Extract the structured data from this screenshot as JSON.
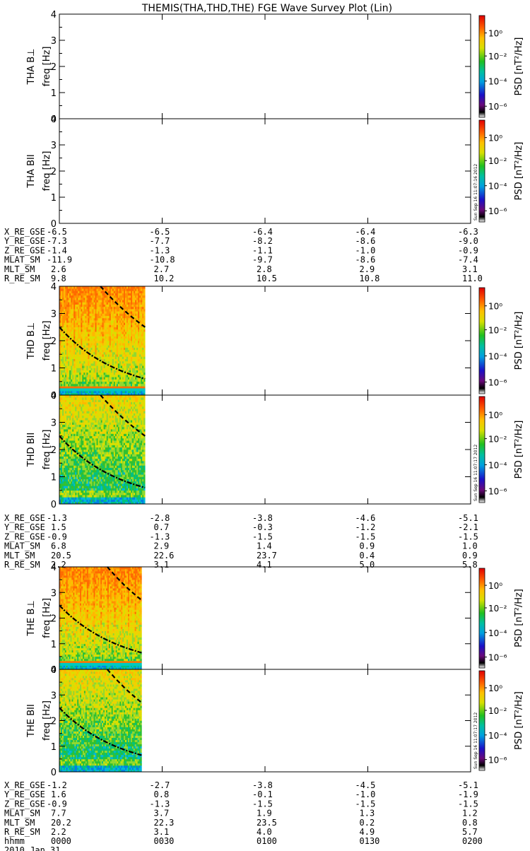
{
  "title": "THEMIS(THA,THD,THE) FGE Wave Survey Plot (Lin)",
  "colorbar": {
    "label": "PSD [nT²/Hz]",
    "ticks": [
      "10⁰",
      "10⁻²",
      "10⁻⁴",
      "10⁻⁶"
    ],
    "stamp": "Sun Sep 16 11:07:17 2012",
    "stamp_top": "Sun Sep 16 11:07:16 2012"
  },
  "freq_ticks": [
    "0",
    "1",
    "2",
    "3",
    "4"
  ],
  "time_ticks": [
    "0000",
    "0030",
    "0100",
    "0130",
    "0200"
  ],
  "date_label": "2010 Jan 31",
  "hhmm_label": "hhmm",
  "chart_data": [
    {
      "type": "heatmap",
      "probe": "THA",
      "panel": "THA B⊥",
      "ylabel": "freq [Hz]",
      "ylim": [
        0,
        4
      ],
      "xlim": [
        "0000",
        "0200"
      ],
      "data_coverage": "none",
      "ephemeris": {
        "labels": [
          "X_RE_GSE",
          "Y_RE_GSE",
          "Z_RE_GSE",
          "MLAT_SM",
          "MLT_SM",
          "R_RE_SM"
        ],
        "values": [
          [
            "-6.5",
            "-6.5",
            "-6.4",
            "-6.4",
            "-6.3"
          ],
          [
            "-7.3",
            "-7.7",
            "-8.2",
            "-8.6",
            "-9.0"
          ],
          [
            "-1.4",
            "-1.3",
            "-1.1",
            "-1.0",
            "-0.9"
          ],
          [
            "-11.9",
            "-10.8",
            "-9.7",
            "-8.6",
            "-7.4"
          ],
          [
            "2.6",
            "2.7",
            "2.8",
            "2.9",
            "3.1"
          ],
          [
            "9.8",
            "10.2",
            "10.5",
            "10.8",
            "11.0"
          ]
        ]
      }
    },
    {
      "type": "heatmap",
      "probe": "THA",
      "panel": "THA BII",
      "ylabel": "freq [Hz]",
      "ylim": [
        0,
        4
      ],
      "xlim": [
        "0000",
        "0200"
      ],
      "data_coverage": "none"
    },
    {
      "type": "heatmap",
      "probe": "THD",
      "panel": "THD B⊥",
      "ylabel": "freq [Hz]",
      "ylim": [
        0,
        4
      ],
      "xlim": [
        "0000",
        "0200"
      ],
      "data_end": "0025",
      "curves": [
        {
          "style": "dash-dot",
          "f_start": 2.5,
          "f_end": 0.6
        },
        {
          "style": "dashed",
          "f_start": 4.0,
          "f_end": 2.5,
          "t_start": "0012"
        }
      ],
      "ephemeris": {
        "labels": [
          "X_RE_GSE",
          "Y_RE_GSE",
          "Z_RE_GSE",
          "MLAT_SM",
          "MLT_SM",
          "R_RE_SM"
        ],
        "values": [
          [
            "-1.3",
            "-2.8",
            "-3.8",
            "-4.6",
            "-5.1"
          ],
          [
            "1.5",
            "0.7",
            "-0.3",
            "-1.2",
            "-2.1"
          ],
          [
            "-0.9",
            "-1.3",
            "-1.5",
            "-1.5",
            "-1.5"
          ],
          [
            "6.8",
            "2.9",
            "1.4",
            "0.9",
            "1.0"
          ],
          [
            "20.5",
            "22.6",
            "23.7",
            "0.4",
            "0.9"
          ],
          [
            "2.2",
            "3.1",
            "4.1",
            "5.0",
            "5.8"
          ]
        ]
      }
    },
    {
      "type": "heatmap",
      "probe": "THD",
      "panel": "THD BII",
      "ylabel": "freq [Hz]",
      "ylim": [
        0,
        4
      ],
      "xlim": [
        "0000",
        "0200"
      ],
      "data_end": "0025",
      "curves": [
        {
          "style": "dash-dot",
          "f_start": 2.5,
          "f_end": 0.6
        },
        {
          "style": "dashed",
          "f_start": 4.0,
          "f_end": 2.5,
          "t_start": "0012"
        }
      ]
    },
    {
      "type": "heatmap",
      "probe": "THE",
      "panel": "THE B⊥",
      "ylabel": "freq [Hz]",
      "ylim": [
        0,
        4
      ],
      "xlim": [
        "0000",
        "0200"
      ],
      "data_end": "0024",
      "curves": [
        {
          "style": "dash-dot",
          "f_start": 2.5,
          "f_end": 0.65
        },
        {
          "style": "dashed",
          "f_start": 4.0,
          "f_end": 2.7,
          "t_start": "0014"
        }
      ],
      "ephemeris": {
        "labels": [
          "X_RE_GSE",
          "Y_RE_GSE",
          "Z_RE_GSE",
          "MLAT_SM",
          "MLT_SM",
          "R_RE_SM"
        ],
        "values": [
          [
            "-1.2",
            "-2.7",
            "-3.8",
            "-4.5",
            "-5.1"
          ],
          [
            "1.6",
            "0.8",
            "-0.1",
            "-1.0",
            "-1.9"
          ],
          [
            "-0.9",
            "-1.3",
            "-1.5",
            "-1.5",
            "-1.5"
          ],
          [
            "7.7",
            "3.7",
            "1.9",
            "1.3",
            "1.2"
          ],
          [
            "20.2",
            "22.3",
            "23.5",
            "0.2",
            "0.8"
          ],
          [
            "2.2",
            "3.1",
            "4.0",
            "4.9",
            "5.7"
          ]
        ]
      }
    },
    {
      "type": "heatmap",
      "probe": "THE",
      "panel": "THE BII",
      "ylabel": "freq [Hz]",
      "ylim": [
        0,
        4
      ],
      "xlim": [
        "0000",
        "0200"
      ],
      "data_end": "0024",
      "curves": [
        {
          "style": "dash-dot",
          "f_start": 2.5,
          "f_end": 0.65
        },
        {
          "style": "dashed",
          "f_start": 4.0,
          "f_end": 2.7,
          "t_start": "0014"
        }
      ]
    }
  ]
}
